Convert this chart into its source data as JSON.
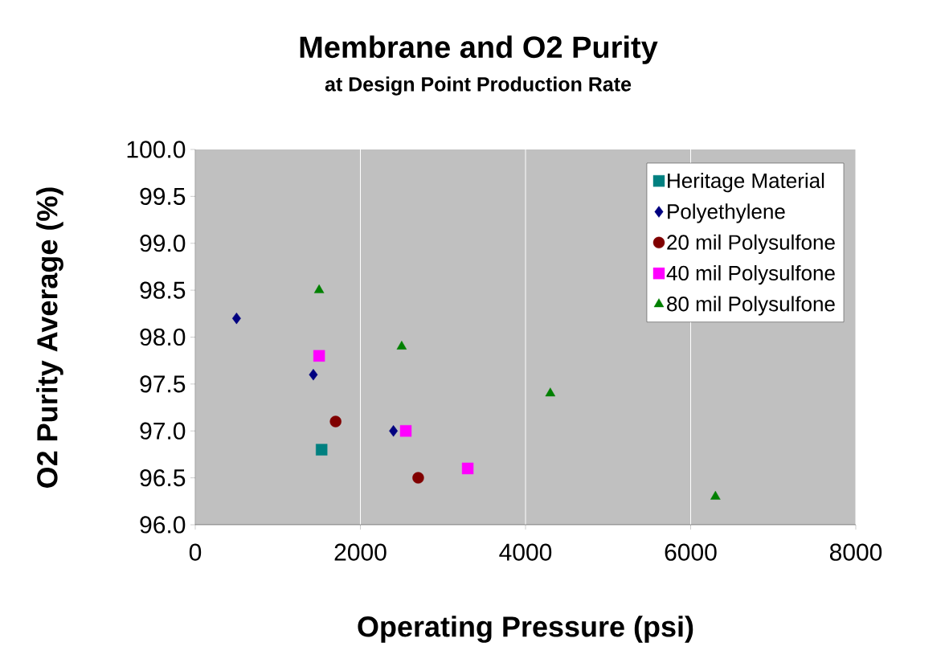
{
  "chart_data": {
    "type": "scatter",
    "title": "Membrane and O2 Purity",
    "subtitle": "at Design Point Production Rate",
    "xlabel": "Operating Pressure (psi)",
    "ylabel": "O2 Purity Average (%)",
    "xlim": [
      0,
      8000
    ],
    "xticks": [
      0,
      2000,
      4000,
      6000,
      8000
    ],
    "ylim": [
      96,
      100
    ],
    "yticks": [
      {
        "value": 96,
        "label": "96.0"
      },
      {
        "value": 96.5,
        "label": "96.5"
      },
      {
        "value": 97,
        "label": "97.0"
      },
      {
        "value": 97.5,
        "label": "97.5"
      },
      {
        "value": 98,
        "label": "98.0"
      },
      {
        "value": 98.5,
        "label": "98.5"
      },
      {
        "value": 99,
        "label": "99.0"
      },
      {
        "value": 99.5,
        "label": "99.5"
      },
      {
        "value": 100,
        "label": "100.0"
      }
    ],
    "grid": "x",
    "legend": "top right",
    "series": [
      {
        "name": "Heritage Material",
        "color": "#008080",
        "marker": "square",
        "x": [
          1530
        ],
        "values": [
          96.8
        ]
      },
      {
        "name": "Polyethylene",
        "color": "#000080",
        "marker": "diamond",
        "x": [
          500,
          1430,
          2400
        ],
        "values": [
          98.2,
          97.6,
          97.0
        ]
      },
      {
        "name": "20 mil Polysulfone",
        "color": "#800000",
        "marker": "circle",
        "x": [
          1700,
          2700
        ],
        "values": [
          97.1,
          96.5
        ]
      },
      {
        "name": "40 mil Polysulfone",
        "color": "#ff00ff",
        "marker": "square",
        "x": [
          1500,
          2550,
          3300
        ],
        "values": [
          97.8,
          97.0,
          96.6
        ]
      },
      {
        "name": "80 mil Polysulfone",
        "color": "#008000",
        "marker": "triangle",
        "x": [
          1500,
          2500,
          4300,
          6300
        ],
        "values": [
          98.5,
          97.9,
          97.4,
          96.3
        ]
      }
    ]
  }
}
